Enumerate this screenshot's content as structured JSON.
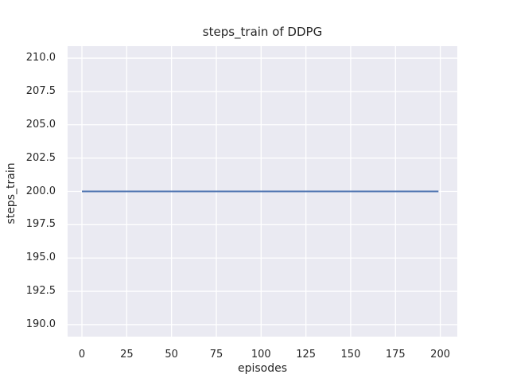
{
  "chart_data": {
    "type": "line",
    "title": "steps_train of DDPG",
    "xlabel": "episodes",
    "ylabel": "steps_train",
    "xlim": [
      -8,
      209.5
    ],
    "ylim": [
      189.1,
      210.9
    ],
    "grid": true,
    "legend": false,
    "xticks": [
      {
        "value": 0,
        "label": "0"
      },
      {
        "value": 25,
        "label": "25"
      },
      {
        "value": 50,
        "label": "50"
      },
      {
        "value": 75,
        "label": "75"
      },
      {
        "value": 100,
        "label": "100"
      },
      {
        "value": 125,
        "label": "125"
      },
      {
        "value": 150,
        "label": "150"
      },
      {
        "value": 175,
        "label": "175"
      },
      {
        "value": 200,
        "label": "200"
      }
    ],
    "yticks": [
      {
        "value": 190.0,
        "label": "190.0"
      },
      {
        "value": 192.5,
        "label": "192.5"
      },
      {
        "value": 195.0,
        "label": "195.0"
      },
      {
        "value": 197.5,
        "label": "197.5"
      },
      {
        "value": 200.0,
        "label": "200.0"
      },
      {
        "value": 202.5,
        "label": "202.5"
      },
      {
        "value": 205.0,
        "label": "205.0"
      },
      {
        "value": 207.5,
        "label": "207.5"
      },
      {
        "value": 210.0,
        "label": "210.0"
      }
    ],
    "series": [
      {
        "name": "steps_train",
        "color": "#4C72B0",
        "note": "constant value 200 for every episode from 0 to 199",
        "points": [
          [
            0,
            200
          ],
          [
            199,
            200
          ]
        ]
      }
    ],
    "colors": {
      "plot_background": "#EAEAF2",
      "figure_background": "#FFFFFF",
      "grid": "#FFFFFF",
      "text": "#262626",
      "line": "#4C72B0"
    }
  }
}
